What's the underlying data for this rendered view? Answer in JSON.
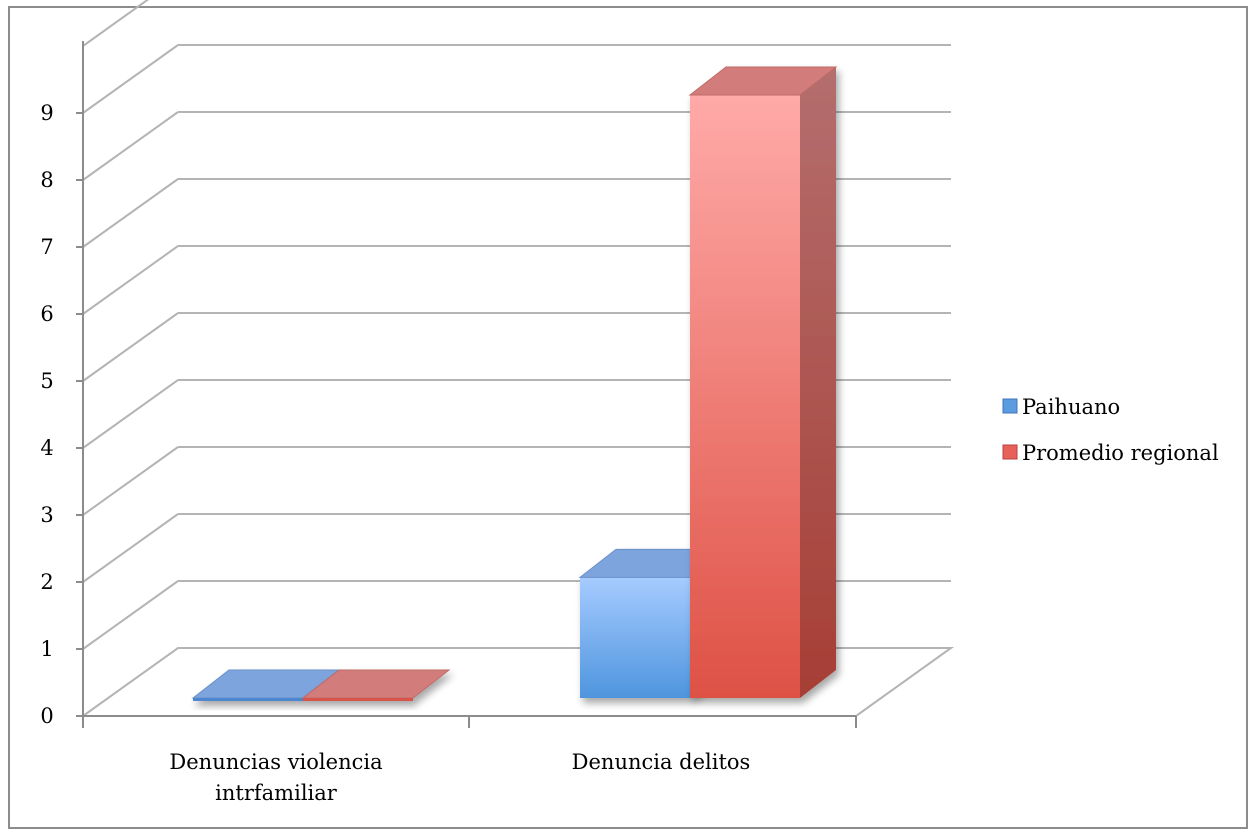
{
  "chart_data": {
    "type": "bar",
    "categories": [
      "Denuncias violencia intrfamiliar",
      "Denuncia delitos"
    ],
    "category_lines": [
      [
        "Denuncias violencia",
        "intrfamiliar"
      ],
      [
        "Denuncia delitos"
      ]
    ],
    "series": [
      {
        "name": "Paihuano",
        "values": [
          0,
          1.8
        ],
        "color": "#5b9be0"
      },
      {
        "name": "Promedio regional",
        "values": [
          0,
          9.0
        ],
        "color": "#e8605a"
      }
    ],
    "ylim": [
      0,
      10
    ],
    "yticks": [
      "0",
      "1",
      "2",
      "3",
      "4",
      "5",
      "6",
      "7",
      "8",
      "9"
    ],
    "grid": true,
    "legend_position": "right",
    "title": "",
    "xlabel": "",
    "ylabel": ""
  }
}
